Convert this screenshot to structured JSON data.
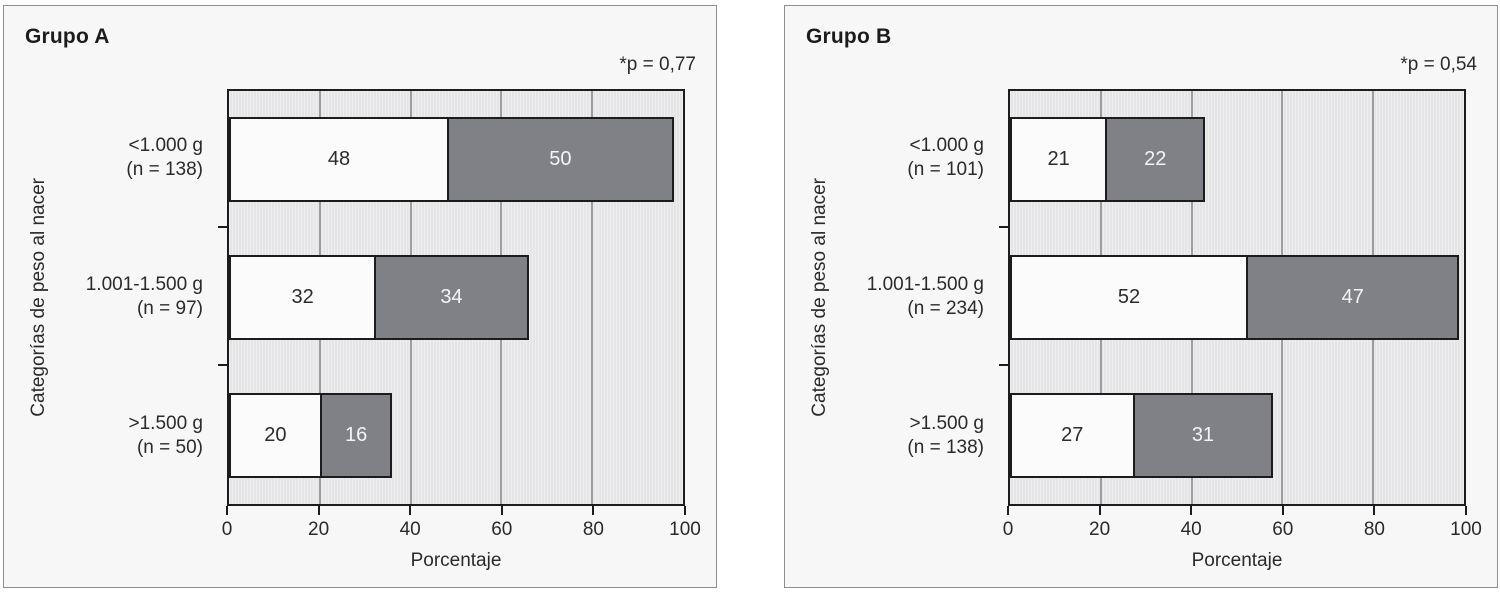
{
  "chart_data": [
    {
      "type": "bar",
      "orientation": "horizontal",
      "stacked": true,
      "title": "Grupo A",
      "annotation": "*p = 0,77",
      "xlabel": "Porcentaje",
      "ylabel": "Categorías de peso al nacer",
      "xlim": [
        0,
        100
      ],
      "xticks": [
        "0",
        "20",
        "40",
        "60",
        "80",
        "100"
      ],
      "grid": "vertical",
      "legend": "none",
      "categories": [
        "<1.000 g (n = 138)",
        "1.001-1.500 g (n = 97)",
        ">1.500 g (n = 50)"
      ],
      "category_lines": [
        [
          "<1.000 g",
          "(n = 138)"
        ],
        [
          "1.001-1.500 g",
          "(n = 97)"
        ],
        [
          ">1.500 g",
          "(n = 50)"
        ]
      ],
      "series": [
        {
          "name": "segment-light",
          "color": "#fbfbfb",
          "values": [
            48,
            32,
            20
          ]
        },
        {
          "name": "segment-dark",
          "color": "#7f8186",
          "values": [
            50,
            34,
            16
          ]
        }
      ]
    },
    {
      "type": "bar",
      "orientation": "horizontal",
      "stacked": true,
      "title": "Grupo B",
      "annotation": "*p = 0,54",
      "xlabel": "Porcentaje",
      "ylabel": "Categorías de peso al nacer",
      "xlim": [
        0,
        100
      ],
      "xticks": [
        "0",
        "20",
        "40",
        "60",
        "80",
        "100"
      ],
      "grid": "vertical",
      "legend": "none",
      "categories": [
        "<1.000 g (n = 101)",
        "1.001-1.500 g (n = 234)",
        ">1.500 g (n = 138)"
      ],
      "category_lines": [
        [
          "<1.000 g",
          "(n = 101)"
        ],
        [
          "1.001-1.500 g",
          "(n = 234)"
        ],
        [
          ">1.500 g",
          "(n = 138)"
        ]
      ],
      "series": [
        {
          "name": "segment-light",
          "color": "#fbfbfb",
          "values": [
            21,
            52,
            27
          ]
        },
        {
          "name": "segment-dark",
          "color": "#7f8186",
          "values": [
            22,
            47,
            31
          ]
        }
      ]
    }
  ],
  "colors": {
    "panel_background": "#f7f7f8",
    "panel_border": "#8e8e90",
    "plot_background": "#e5e5e7",
    "gridline": "#9b9da1",
    "frame": "#1c1c1c",
    "bar_light": "#fbfbfb",
    "bar_dark": "#7f8186"
  }
}
